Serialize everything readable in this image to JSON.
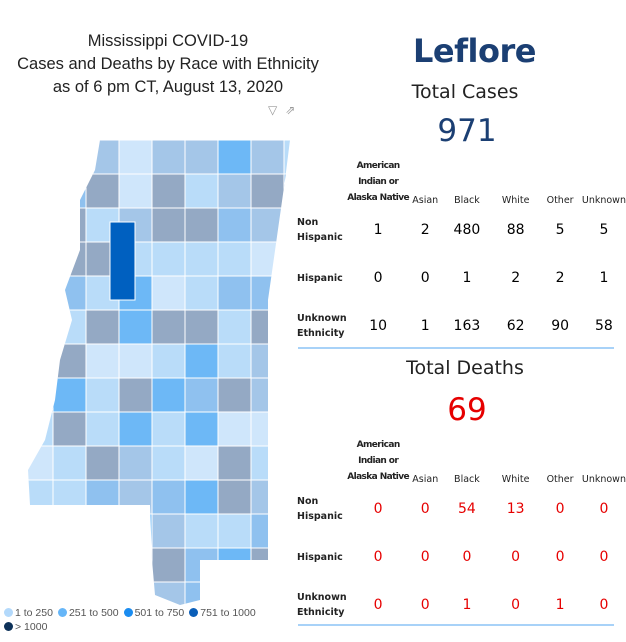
{
  "title": {
    "line1": "Mississippi COVID-19",
    "line2": "Cases and Deaths by Race with Ethnicity",
    "line3": "as of 6 pm CT, August 13, 2020"
  },
  "visual_icons": [
    "filter-icon",
    "focus-mode-icon"
  ],
  "legend": [
    {
      "label": "1 to 250",
      "color": "#b3d9fb"
    },
    {
      "label": "251 to 500",
      "color": "#66b6f8"
    },
    {
      "label": "501 to 750",
      "color": "#1a8cf0"
    },
    {
      "label": "751 to 1000",
      "color": "#0a5eb8"
    },
    {
      "label": "> 1000",
      "color": "#0d3159"
    }
  ],
  "county": "Leflore",
  "cases": {
    "heading": "Total Cases",
    "total": "971",
    "columns": [
      "American Indian or Alaska Native",
      "Asian",
      "Black",
      "White",
      "Other",
      "Unknown"
    ],
    "rows": [
      {
        "label": "Non Hispanic",
        "values": [
          "1",
          "2",
          "480",
          "88",
          "5",
          "5"
        ]
      },
      {
        "label": "Hispanic",
        "values": [
          "0",
          "0",
          "1",
          "2",
          "2",
          "1"
        ]
      },
      {
        "label": "Unknown Ethnicity",
        "values": [
          "10",
          "1",
          "163",
          "62",
          "90",
          "58"
        ]
      }
    ]
  },
  "deaths": {
    "heading": "Total Deaths",
    "total": "69",
    "columns": [
      "American Indian or Alaska Native",
      "Asian",
      "Black",
      "White",
      "Other",
      "Unknown"
    ],
    "rows": [
      {
        "label": "Non Hispanic",
        "values": [
          "0",
          "0",
          "54",
          "13",
          "0",
          "0"
        ]
      },
      {
        "label": "Hispanic",
        "values": [
          "0",
          "0",
          "0",
          "0",
          "0",
          "0"
        ]
      },
      {
        "label": "Unknown Ethnicity",
        "values": [
          "0",
          "0",
          "1",
          "0",
          "1",
          "0"
        ]
      }
    ]
  },
  "colors": {
    "county_title": "#1b3f73",
    "cases_total": "#1b3f73",
    "deaths_total": "#e60000",
    "selected_county": "#0060c0"
  }
}
